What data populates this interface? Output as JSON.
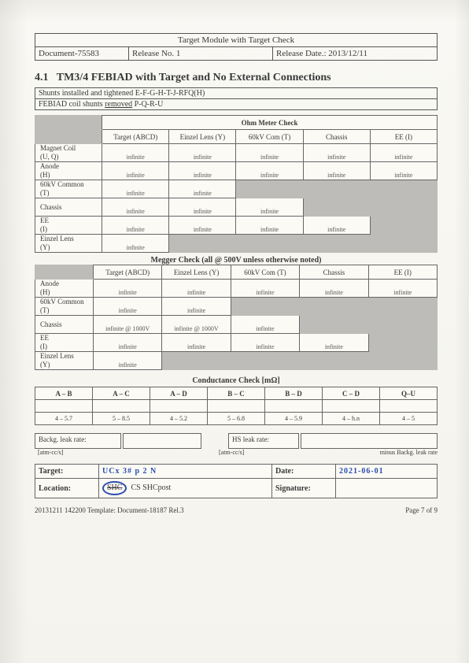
{
  "header": {
    "title": "Target Module with Target Check",
    "doc": "Document-75583",
    "rel": "Release No. 1",
    "date": "Release Date.: 2013/12/11"
  },
  "section": {
    "num": "4.1",
    "title": "TM3/4 FEBIAD with Target and No External Connections"
  },
  "notes": {
    "n1": "Shunts installed and tightened E-F-G-H-T-J-RFQ(H)",
    "n2a": "FEBIAD coil shunts",
    "n2b": "removed",
    "n2c": "P-Q-R-U"
  },
  "ohm": {
    "banner": "Ohm Meter Check",
    "cols": [
      "Target (ABCD)",
      "Einzel Lens (Y)",
      "60kV Com (T)",
      "Chassis",
      "EE (I)"
    ],
    "rows": [
      {
        "l1": "Magnet Coil",
        "l2": "(U, Q)",
        "v": [
          "infinite",
          "infinite",
          "infinite",
          "infinite",
          "infinite"
        ],
        "grey": []
      },
      {
        "l1": "Anode",
        "l2": "(H)",
        "v": [
          "infinite",
          "infinite",
          "infinite",
          "infinite",
          "infinite"
        ],
        "grey": []
      },
      {
        "l1": "60kV Common",
        "l2": "(T)",
        "v": [
          "infinite",
          "infinite",
          "",
          "",
          ""
        ],
        "grey": [
          2,
          3,
          4
        ]
      },
      {
        "l1": "Chassis",
        "l2": "",
        "v": [
          "infinite",
          "infinite",
          "infinite",
          "",
          ""
        ],
        "grey": [
          3,
          4
        ]
      },
      {
        "l1": "EE",
        "l2": "(I)",
        "v": [
          "infinite",
          "infinite",
          "infinite",
          "infinite",
          ""
        ],
        "grey": [
          4
        ]
      },
      {
        "l1": "Einzel Lens",
        "l2": "(Y)",
        "v": [
          "infinite",
          "",
          "",
          "",
          ""
        ],
        "grey": [
          1,
          2,
          3,
          4
        ]
      }
    ]
  },
  "megger": {
    "banner": "Megger Check (all @ 500V unless otherwise noted)",
    "cols": [
      "Target (ABCD)",
      "Einzel Lens (Y)",
      "60kV Com (T)",
      "Chassis",
      "EE (I)"
    ],
    "rows": [
      {
        "l1": "Anode",
        "l2": "(H)",
        "v": [
          "infinite",
          "infinite",
          "infinite",
          "infinite",
          "infinite"
        ],
        "grey": []
      },
      {
        "l1": "60kV Common",
        "l2": "(T)",
        "v": [
          "infinite",
          "infinite",
          "",
          "",
          ""
        ],
        "grey": [
          2,
          3,
          4
        ]
      },
      {
        "l1": "Chassis",
        "l2": "",
        "v": [
          "infinite @ 1000V",
          "infinite @ 1000V",
          "infinite",
          "",
          ""
        ],
        "grey": [
          3,
          4
        ]
      },
      {
        "l1": "EE",
        "l2": "(I)",
        "v": [
          "infinite",
          "infinite",
          "infinite",
          "infinite",
          ""
        ],
        "grey": [
          4
        ]
      },
      {
        "l1": "Einzel Lens",
        "l2": "(Y)",
        "v": [
          "infinite",
          "",
          "",
          "",
          ""
        ],
        "grey": [
          1,
          2,
          3,
          4
        ]
      }
    ]
  },
  "cond": {
    "banner": "Conductance Check [mΩ]",
    "cols": [
      "A – B",
      "A – C",
      "A – D",
      "B – C",
      "B – D",
      "C – D",
      "Q–U"
    ],
    "vals": [
      "4 – 5.7",
      "5 – 8.5",
      "4 – 5.2",
      "5 – 6.8",
      "4 – 5.9",
      "4 – h.n",
      "4 – 5"
    ]
  },
  "leak": {
    "l1": "Backg. leak rate:",
    "u1": "[atm-cc/s]",
    "l2": "HS leak rate:",
    "u2": "minus  Backg. leak rate",
    "u3": "[atm-cc/s]"
  },
  "sig": {
    "target_k": "Target:",
    "target_v": "UCx 3#  p 2 N",
    "date_k": "Date:",
    "date_v": "2021-06-01",
    "loc_k": "Location:",
    "loc_shc": "SHC",
    "loc_rest": "CS   SHCpost",
    "sign_k": "Signature:"
  },
  "footer": {
    "left": "20131211 142200 Template: Document-18187 Rel.3",
    "right": "Page 7 of 9"
  }
}
